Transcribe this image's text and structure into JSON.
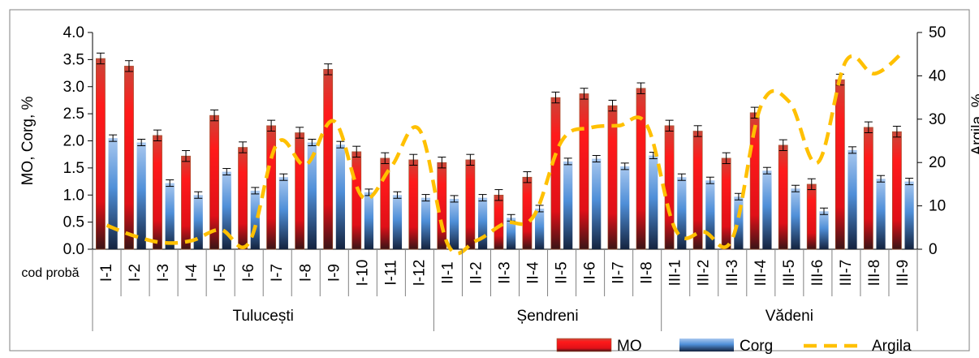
{
  "chart_data": {
    "type": "bar",
    "title": "",
    "ylabel": "MO, Corg, %",
    "y2label": "Argila, %",
    "ylim": [
      0,
      4.0
    ],
    "yticks": [
      "0.0",
      "0.5",
      "1.0",
      "1.5",
      "2.0",
      "2.5",
      "3.0",
      "3.5",
      "4.0"
    ],
    "y2lim": [
      0,
      50
    ],
    "y2ticks": [
      "0",
      "10",
      "20",
      "30",
      "40",
      "50"
    ],
    "row_label": "cod probă",
    "categories": [
      "I-1",
      "I-2",
      "I-3",
      "I-4",
      "I-5",
      "I-6",
      "I-7",
      "I-8",
      "I-9",
      "I-10",
      "I-11",
      "I-12",
      "II-1",
      "II-2",
      "II-3",
      "II-4",
      "II-5",
      "II-6",
      "II-7",
      "II-8",
      "III-1",
      "III-2",
      "III-3",
      "III-4",
      "III-5",
      "III-6",
      "III-7",
      "III-8",
      "III-9"
    ],
    "groups": [
      {
        "label": "Tulucești",
        "count": 12
      },
      {
        "label": "Șendreni",
        "count": 8
      },
      {
        "label": "Vădeni",
        "count": 9
      }
    ],
    "series": [
      {
        "name": "MO",
        "kind": "bar",
        "axis": "left",
        "color": "#e8141c",
        "values": [
          3.52,
          3.38,
          2.1,
          1.72,
          2.47,
          1.88,
          2.28,
          2.15,
          3.32,
          1.8,
          1.68,
          1.65,
          1.6,
          1.65,
          1.0,
          1.33,
          2.8,
          2.87,
          2.65,
          2.97,
          2.28,
          2.18,
          1.68,
          2.52,
          1.92,
          1.2,
          3.13,
          2.25,
          2.17
        ],
        "errors": [
          0.1,
          0.1,
          0.1,
          0.1,
          0.1,
          0.1,
          0.1,
          0.1,
          0.1,
          0.1,
          0.1,
          0.1,
          0.1,
          0.1,
          0.1,
          0.1,
          0.1,
          0.1,
          0.1,
          0.1,
          0.1,
          0.1,
          0.1,
          0.1,
          0.1,
          0.1,
          0.1,
          0.1,
          0.1
        ]
      },
      {
        "name": "Corg",
        "kind": "bar",
        "axis": "left",
        "color": "#4f8fd8",
        "values": [
          2.05,
          1.97,
          1.22,
          1.0,
          1.43,
          1.08,
          1.33,
          1.97,
          1.93,
          1.05,
          1.0,
          0.95,
          0.93,
          0.95,
          0.58,
          0.75,
          1.62,
          1.67,
          1.53,
          1.73,
          1.33,
          1.27,
          0.97,
          1.45,
          1.12,
          0.7,
          1.83,
          1.3,
          1.25
        ],
        "errors": [
          0.06,
          0.06,
          0.06,
          0.06,
          0.06,
          0.06,
          0.06,
          0.06,
          0.06,
          0.06,
          0.06,
          0.06,
          0.06,
          0.06,
          0.06,
          0.06,
          0.06,
          0.06,
          0.06,
          0.06,
          0.06,
          0.06,
          0.06,
          0.06,
          0.06,
          0.06,
          0.06,
          0.06,
          0.06
        ]
      },
      {
        "name": "Argila",
        "kind": "line",
        "axis": "right",
        "color": "#ffc000",
        "dash": true,
        "values": [
          5.5,
          3,
          1.5,
          2,
          4.5,
          1.5,
          24.5,
          19.5,
          29.5,
          12,
          19,
          27.5,
          1,
          2,
          6,
          7.5,
          25,
          28,
          28.5,
          28.5,
          4.5,
          4,
          2.5,
          33,
          34,
          20,
          43.5,
          40.5,
          45.5
        ]
      }
    ],
    "legend_position": "bottom-right",
    "grid": false
  }
}
